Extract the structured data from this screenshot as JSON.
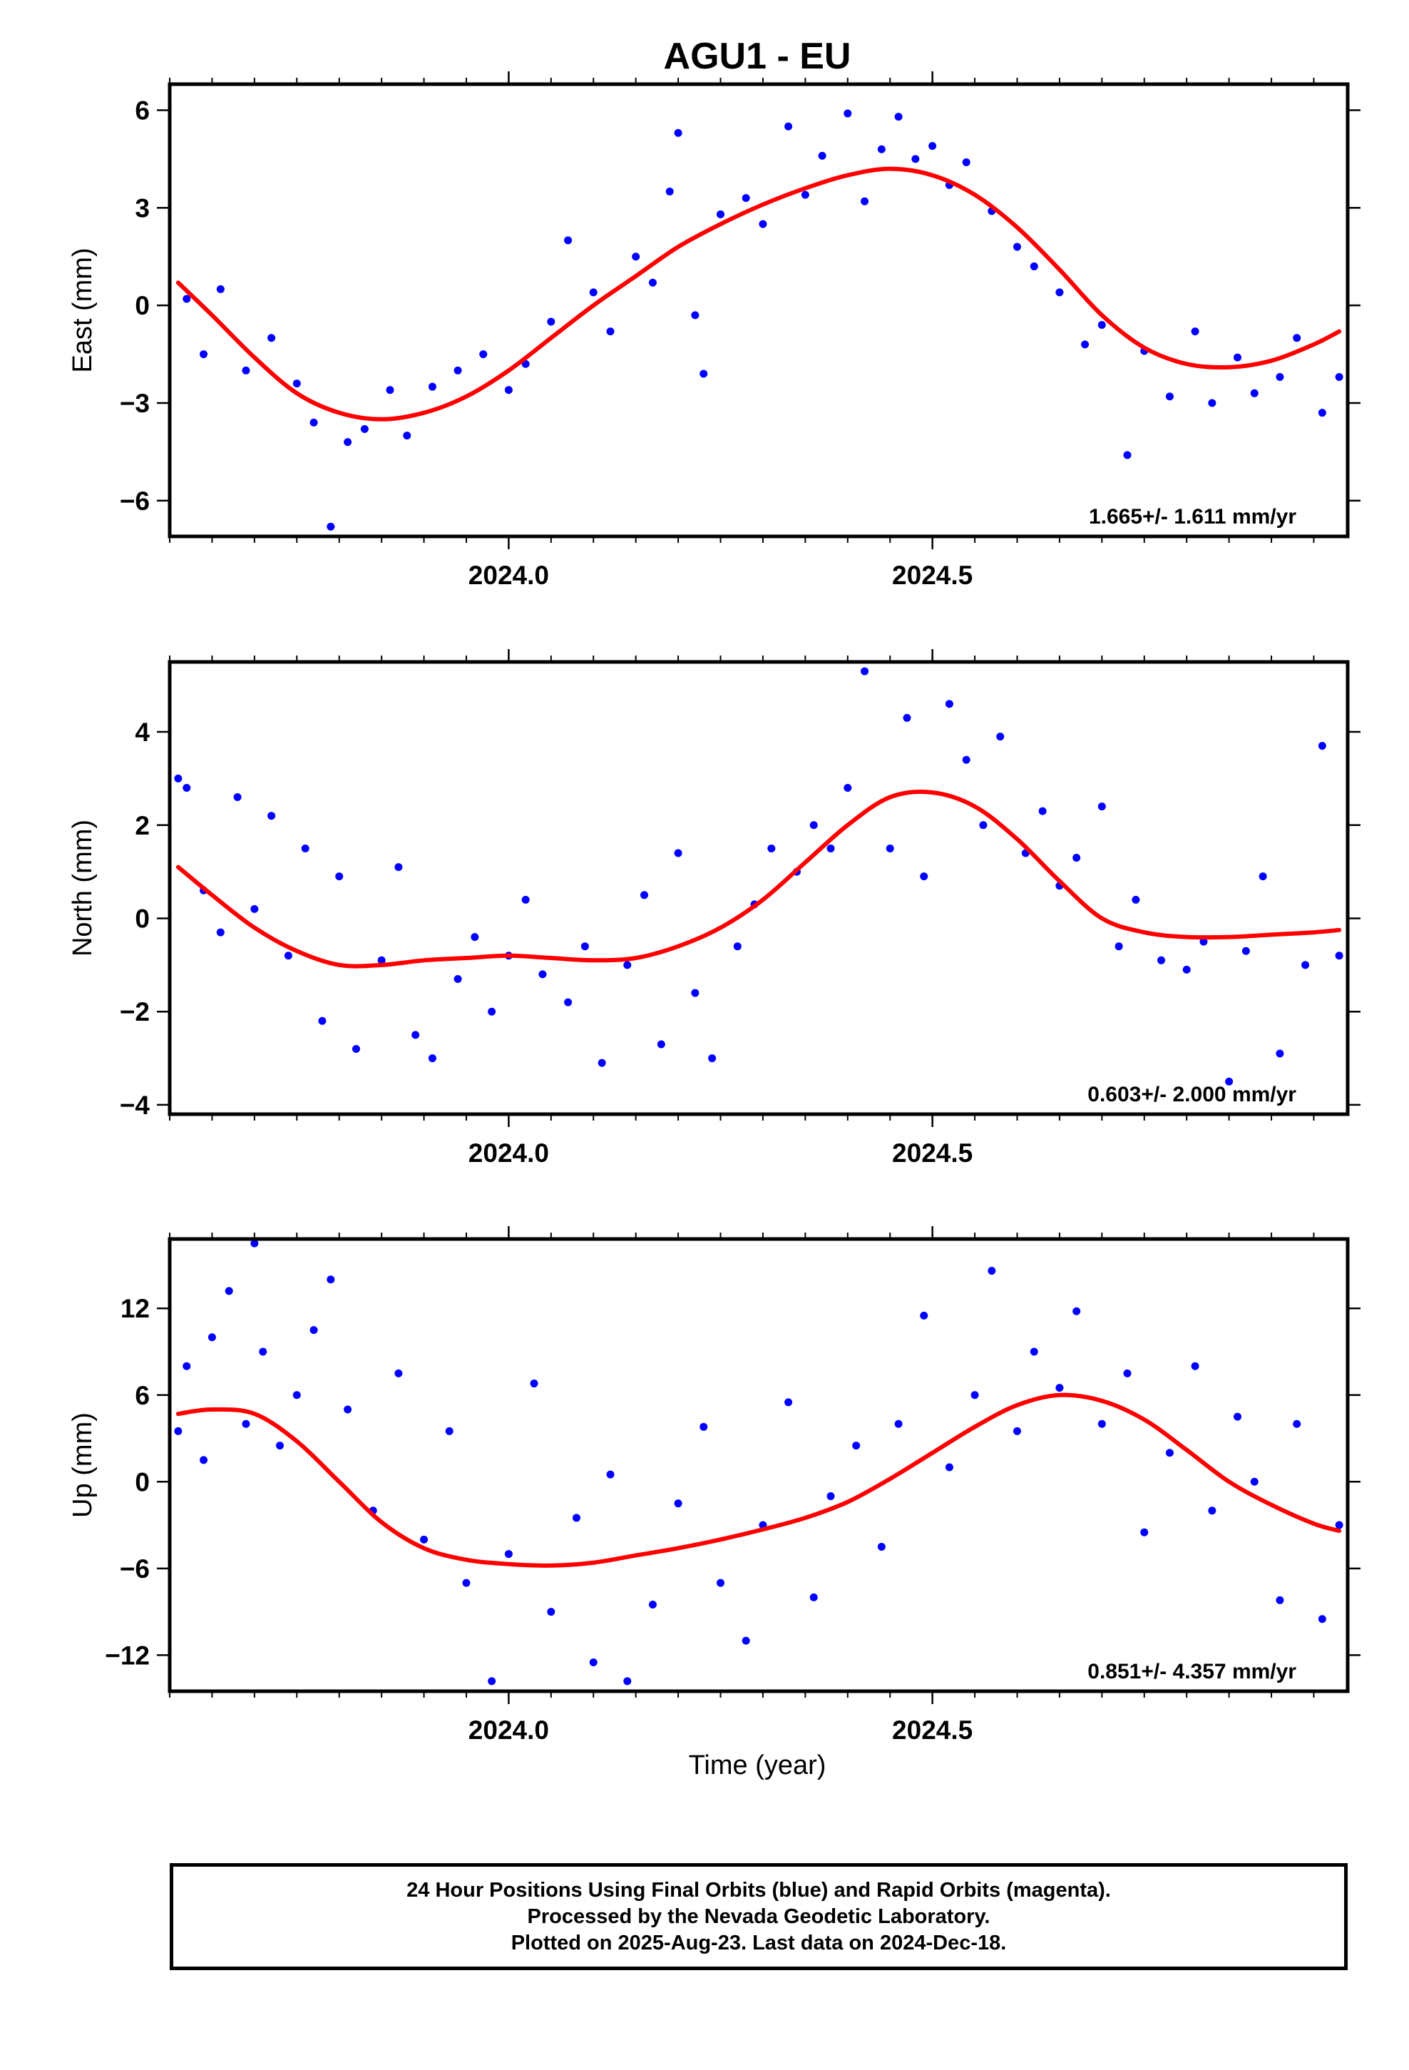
{
  "title": "AGU1 - EU",
  "xlabel": "Time (year)",
  "footer": {
    "line1": "24 Hour Positions Using Final Orbits (blue) and Rapid Orbits (magenta).",
    "line2": "Processed by the Nevada Geodetic Laboratory.",
    "line3": "Plotted on 2025-Aug-23. Last data on 2024-Dec-18."
  },
  "colors": {
    "final_orbits": "#0000ff",
    "fit_curve": "#ff0000",
    "axes": "#000000"
  },
  "chart_data": [
    {
      "type": "scatter",
      "panel": "east",
      "ylabel": "East (mm)",
      "rate_text": "1.665+/- 1.611 mm/yr",
      "xlim": [
        2023.6,
        2024.99
      ],
      "ylim": [
        -7.1,
        6.8
      ],
      "yticks": [
        -6,
        -3,
        0,
        3,
        6
      ],
      "yticklabels": [
        "−6",
        "−3",
        "0",
        "3",
        "6"
      ],
      "xticks": [
        2024.0,
        2024.5
      ],
      "xticklabels": [
        "2024.0",
        "2024.5"
      ],
      "fit": {
        "x": [
          2023.61,
          2023.65,
          2023.7,
          2023.75,
          2023.8,
          2023.85,
          2023.9,
          2023.95,
          2024.0,
          2024.05,
          2024.1,
          2024.15,
          2024.2,
          2024.25,
          2024.3,
          2024.35,
          2024.4,
          2024.45,
          2024.5,
          2024.55,
          2024.6,
          2024.65,
          2024.7,
          2024.75,
          2024.8,
          2024.85,
          2024.9,
          2024.95,
          2024.98
        ],
        "y": [
          0.7,
          -0.3,
          -1.6,
          -2.7,
          -3.3,
          -3.5,
          -3.3,
          -2.8,
          -2.0,
          -1.0,
          0.0,
          0.9,
          1.8,
          2.5,
          3.1,
          3.6,
          4.0,
          4.2,
          4.0,
          3.4,
          2.4,
          1.1,
          -0.3,
          -1.3,
          -1.8,
          -1.9,
          -1.7,
          -1.2,
          -0.8
        ]
      },
      "points": {
        "x": [
          2023.62,
          2023.64,
          2023.66,
          2023.69,
          2023.72,
          2023.75,
          2023.77,
          2023.79,
          2023.81,
          2023.83,
          2023.86,
          2023.88,
          2023.91,
          2023.94,
          2023.97,
          2024.0,
          2024.02,
          2024.05,
          2024.07,
          2024.1,
          2024.12,
          2024.15,
          2024.17,
          2024.19,
          2024.2,
          2024.22,
          2024.23,
          2024.25,
          2024.28,
          2024.3,
          2024.33,
          2024.35,
          2024.37,
          2024.4,
          2024.42,
          2024.44,
          2024.46,
          2024.48,
          2024.5,
          2024.52,
          2024.54,
          2024.57,
          2024.6,
          2024.62,
          2024.65,
          2024.68,
          2024.7,
          2024.73,
          2024.75,
          2024.78,
          2024.81,
          2024.83,
          2024.86,
          2024.88,
          2024.91,
          2024.93,
          2024.96,
          2024.98
        ],
        "y": [
          0.2,
          -1.5,
          0.5,
          -2.0,
          -1.0,
          -2.4,
          -3.6,
          -6.8,
          -4.2,
          -3.8,
          -2.6,
          -4.0,
          -2.5,
          -2.0,
          -1.5,
          -2.6,
          -1.8,
          -0.5,
          2.0,
          0.4,
          -0.8,
          1.5,
          0.7,
          3.5,
          5.3,
          -0.3,
          -2.1,
          2.8,
          3.3,
          2.5,
          5.5,
          3.4,
          4.6,
          5.9,
          3.2,
          4.8,
          5.8,
          4.5,
          4.9,
          3.7,
          4.4,
          2.9,
          1.8,
          1.2,
          0.4,
          -1.2,
          -0.6,
          -4.6,
          -1.4,
          -2.8,
          -0.8,
          -3.0,
          -1.6,
          -2.7,
          -2.2,
          -1.0,
          -3.3,
          -2.2
        ]
      }
    },
    {
      "type": "scatter",
      "panel": "north",
      "ylabel": "North (mm)",
      "rate_text": "0.603+/- 2.000 mm/yr",
      "xlim": [
        2023.6,
        2024.99
      ],
      "ylim": [
        -4.2,
        5.5
      ],
      "yticks": [
        -4,
        -2,
        0,
        2,
        4
      ],
      "yticklabels": [
        "−4",
        "−2",
        "0",
        "2",
        "4"
      ],
      "xticks": [
        2024.0,
        2024.5
      ],
      "xticklabels": [
        "2024.0",
        "2024.5"
      ],
      "fit": {
        "x": [
          2023.61,
          2023.65,
          2023.7,
          2023.75,
          2023.8,
          2023.85,
          2023.9,
          2023.95,
          2024.0,
          2024.05,
          2024.1,
          2024.15,
          2024.2,
          2024.25,
          2024.3,
          2024.35,
          2024.4,
          2024.45,
          2024.5,
          2024.55,
          2024.6,
          2024.65,
          2024.7,
          2024.75,
          2024.8,
          2024.85,
          2024.9,
          2024.95,
          2024.98
        ],
        "y": [
          1.1,
          0.5,
          -0.2,
          -0.7,
          -1.0,
          -1.0,
          -0.9,
          -0.85,
          -0.8,
          -0.85,
          -0.9,
          -0.85,
          -0.6,
          -0.2,
          0.4,
          1.2,
          2.0,
          2.6,
          2.7,
          2.4,
          1.7,
          0.8,
          0.0,
          -0.3,
          -0.4,
          -0.4,
          -0.35,
          -0.3,
          -0.25
        ]
      },
      "points": {
        "x": [
          2023.61,
          2023.62,
          2023.64,
          2023.66,
          2023.68,
          2023.7,
          2023.72,
          2023.74,
          2023.76,
          2023.78,
          2023.8,
          2023.82,
          2023.85,
          2023.87,
          2023.89,
          2023.91,
          2023.94,
          2023.96,
          2023.98,
          2024.0,
          2024.02,
          2024.04,
          2024.07,
          2024.09,
          2024.11,
          2024.14,
          2024.16,
          2024.18,
          2024.2,
          2024.22,
          2024.24,
          2024.27,
          2024.29,
          2024.31,
          2024.34,
          2024.36,
          2024.38,
          2024.4,
          2024.42,
          2024.45,
          2024.47,
          2024.49,
          2024.52,
          2024.54,
          2024.56,
          2024.58,
          2024.61,
          2024.63,
          2024.65,
          2024.67,
          2024.7,
          2024.72,
          2024.74,
          2024.77,
          2024.8,
          2024.82,
          2024.85,
          2024.87,
          2024.89,
          2024.91,
          2024.94,
          2024.96,
          2024.98
        ],
        "y": [
          3.0,
          2.8,
          0.6,
          -0.3,
          2.6,
          0.2,
          2.2,
          -0.8,
          1.5,
          -2.2,
          0.9,
          -2.8,
          -0.9,
          1.1,
          -2.5,
          -3.0,
          -1.3,
          -0.4,
          -2.0,
          -0.8,
          0.4,
          -1.2,
          -1.8,
          -0.6,
          -3.1,
          -1.0,
          0.5,
          -2.7,
          1.4,
          -1.6,
          -3.0,
          -0.6,
          0.3,
          1.5,
          1.0,
          2.0,
          1.5,
          2.8,
          5.3,
          1.5,
          4.3,
          0.9,
          4.6,
          3.4,
          2.0,
          3.9,
          1.4,
          2.3,
          0.7,
          1.3,
          2.4,
          -0.6,
          0.4,
          -0.9,
          -1.1,
          -0.5,
          -3.5,
          -0.7,
          0.9,
          -2.9,
          -1.0,
          3.7,
          -0.8
        ]
      }
    },
    {
      "type": "scatter",
      "panel": "up",
      "ylabel": "Up (mm)",
      "rate_text": "0.851+/- 4.357 mm/yr",
      "xlim": [
        2023.6,
        2024.99
      ],
      "ylim": [
        -14.5,
        16.8
      ],
      "yticks": [
        -12,
        -6,
        0,
        6,
        12
      ],
      "yticklabels": [
        "−12",
        "−6",
        "0",
        "6",
        "12"
      ],
      "xticks": [
        2024.0,
        2024.5
      ],
      "xticklabels": [
        "2024.0",
        "2024.5"
      ],
      "fit": {
        "x": [
          2023.61,
          2023.65,
          2023.7,
          2023.75,
          2023.8,
          2023.85,
          2023.9,
          2023.95,
          2024.0,
          2024.05,
          2024.1,
          2024.15,
          2024.2,
          2024.25,
          2024.3,
          2024.35,
          2024.4,
          2024.45,
          2024.5,
          2024.55,
          2024.6,
          2024.65,
          2024.7,
          2024.75,
          2024.8,
          2024.85,
          2024.9,
          2024.95,
          2024.98
        ],
        "y": [
          4.7,
          5.0,
          4.7,
          2.8,
          0.0,
          -2.8,
          -4.6,
          -5.4,
          -5.7,
          -5.8,
          -5.6,
          -5.1,
          -4.6,
          -4.0,
          -3.3,
          -2.5,
          -1.4,
          0.2,
          2.0,
          3.8,
          5.3,
          6.0,
          5.6,
          4.3,
          2.2,
          0.0,
          -1.6,
          -2.9,
          -3.4
        ]
      },
      "points": {
        "x": [
          2023.61,
          2023.62,
          2023.64,
          2023.65,
          2023.67,
          2023.69,
          2023.7,
          2023.71,
          2023.73,
          2023.75,
          2023.77,
          2023.79,
          2023.81,
          2023.84,
          2023.87,
          2023.9,
          2023.93,
          2023.95,
          2023.98,
          2024.0,
          2024.03,
          2024.05,
          2024.08,
          2024.1,
          2024.12,
          2024.14,
          2024.17,
          2024.2,
          2024.23,
          2024.25,
          2024.28,
          2024.3,
          2024.33,
          2024.36,
          2024.38,
          2024.41,
          2024.44,
          2024.46,
          2024.49,
          2024.52,
          2024.55,
          2024.57,
          2024.6,
          2024.62,
          2024.65,
          2024.67,
          2024.7,
          2024.73,
          2024.75,
          2024.78,
          2024.81,
          2024.83,
          2024.86,
          2024.88,
          2024.91,
          2024.93,
          2024.96,
          2024.98
        ],
        "y": [
          3.5,
          8.0,
          1.5,
          10.0,
          13.2,
          4.0,
          16.5,
          9.0,
          2.5,
          6.0,
          10.5,
          14.0,
          5.0,
          -2.0,
          7.5,
          -4.0,
          3.5,
          -7.0,
          -13.8,
          -5.0,
          6.8,
          -9.0,
          -2.5,
          -12.5,
          0.5,
          -13.8,
          -8.5,
          -1.5,
          3.8,
          -7.0,
          -11.0,
          -3.0,
          5.5,
          -8.0,
          -1.0,
          2.5,
          -4.5,
          4.0,
          11.5,
          1.0,
          6.0,
          14.6,
          3.5,
          9.0,
          6.5,
          11.8,
          4.0,
          7.5,
          -3.5,
          2.0,
          8.0,
          -2.0,
          4.5,
          0.0,
          -8.2,
          4.0,
          -9.5,
          -3.0
        ]
      }
    }
  ]
}
